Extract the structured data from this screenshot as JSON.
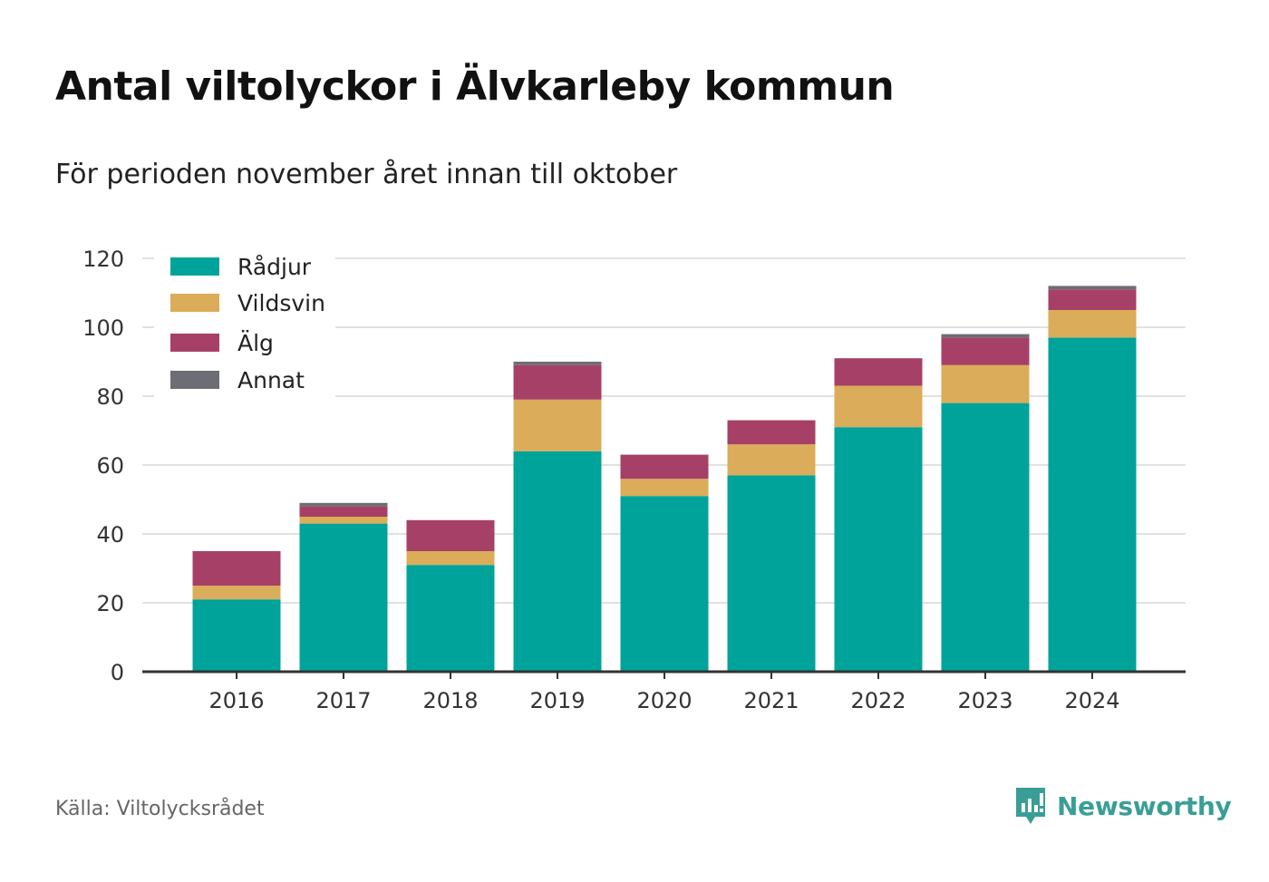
{
  "header": {
    "title": "Antal viltolyckor i Älvkarleby kommun",
    "subtitle": "För perioden november året innan till oktober"
  },
  "chart_data": {
    "type": "bar",
    "stacked": true,
    "categories": [
      "2016",
      "2017",
      "2018",
      "2019",
      "2020",
      "2021",
      "2022",
      "2023",
      "2024"
    ],
    "series": [
      {
        "name": "Rådjur",
        "color": "#00a39a",
        "values": [
          21,
          43,
          31,
          64,
          51,
          57,
          71,
          78,
          97
        ]
      },
      {
        "name": "Vildsvin",
        "color": "#dbac59",
        "values": [
          4,
          2,
          4,
          15,
          5,
          9,
          12,
          11,
          8
        ]
      },
      {
        "name": "Älg",
        "color": "#a64066",
        "values": [
          10,
          3,
          9,
          10,
          7,
          7,
          8,
          8,
          6
        ]
      },
      {
        "name": "Annat",
        "color": "#6d6d75",
        "values": [
          0,
          1,
          0,
          1,
          0,
          0,
          0,
          1,
          1
        ]
      }
    ],
    "yticks": [
      0,
      20,
      40,
      60,
      80,
      100,
      120
    ],
    "ylim": [
      0,
      120
    ],
    "grid": true,
    "legend_position": "top-left"
  },
  "footer": {
    "source": "Källa: Viltolycksrådet",
    "brand": "Newsworthy"
  },
  "colors": {
    "brand": "#3a9e97",
    "grid": "#e1e1e1",
    "axis": "#333333"
  }
}
